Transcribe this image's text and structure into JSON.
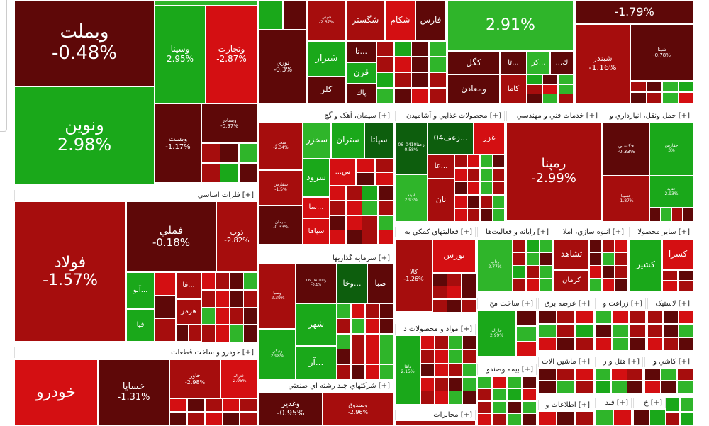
{
  "chart_data": {
    "type": "treemap",
    "colors": {
      "strong_up": "#1aa81a",
      "up": "#2fb52a",
      "dark_up": "#0d5e0d",
      "strong_down": "#d40f12",
      "down": "#a60d0d",
      "dark_down": "#5e0808",
      "header_bg": "#ffffff"
    },
    "groups": [
      "فلزات اساسي [+]",
      "خودرو و ساخت قطعات [+]",
      "سيمان، آهک و گچ [+]",
      "محصولات غذايي و آشاميدن [+]",
      "خدمات فني و مهندسي [+]",
      "حمل ونقل، انبارداري و [+]",
      "سرمايه گذاريها [+]",
      "فعاليتهاي كمكي به [+]",
      "رايانه و فعاليت‌ها [+]",
      "انبوه سازي، املا [+]",
      "ساير محصولا [+]",
      "شركتهاي چند رشته اي صنعتي [+]",
      "مواد و محصولات د [+]",
      "ساخت مح [+]",
      "عرضه برق [+]",
      "زراعت و [+]",
      "لاستيک [+]",
      "بيمه وصندو [+]",
      "ماشين الات [+]",
      "هتل و ر [+]",
      "كاشي و [+]",
      "اطلاعات و [+]",
      "قند [+]",
      "خ [+]",
      "مخابرات [+]"
    ],
    "stocks": [
      {
        "name": "وبملت",
        "change": "-0.48%"
      },
      {
        "name": "ونوين",
        "change": "2.98%"
      },
      {
        "name": "وسينا",
        "change": "2.95%"
      },
      {
        "name": "وتجارت",
        "change": "-2.87%"
      },
      {
        "name": "وبست",
        "change": "-1.17%"
      },
      {
        "name": "وبصادر",
        "change": "-0.97%"
      },
      {
        "name": "نوري",
        "change": "-0.3%"
      },
      {
        "name": "شگستر",
        "change": ""
      },
      {
        "name": "شكام",
        "change": ""
      },
      {
        "name": "فارس",
        "change": ""
      },
      {
        "name": "شيراز",
        "change": ""
      },
      {
        "name": "قرن",
        "change": ""
      },
      {
        "name": "كلر",
        "change": ""
      },
      {
        "name": "تا...",
        "change": ""
      },
      {
        "name": "پاك",
        "change": ""
      },
      {
        "name": "شپني",
        "change": "-2.67%"
      },
      {
        "name": "",
        "change": "2.91%"
      },
      {
        "name": "",
        "change": "-1.79%"
      },
      {
        "name": "كگل",
        "change": ""
      },
      {
        "name": "تا...",
        "change": ""
      },
      {
        "name": "كر...",
        "change": ""
      },
      {
        "name": "...ك",
        "change": ""
      },
      {
        "name": "ومعادن",
        "change": ""
      },
      {
        "name": "كاما",
        "change": ""
      },
      {
        "name": "شبندر",
        "change": "-1.16%"
      },
      {
        "name": "شپنا",
        "change": "-0.78%"
      },
      {
        "name": "فولاد",
        "change": "-1.57%"
      },
      {
        "name": "فملي",
        "change": "-0.18%"
      },
      {
        "name": "ذوب",
        "change": "-2.82%"
      },
      {
        "name": "فا...",
        "change": ""
      },
      {
        "name": "آلو...",
        "change": ""
      },
      {
        "name": "هرمز",
        "change": ""
      },
      {
        "name": "فيا",
        "change": ""
      },
      {
        "name": "خودرو",
        "change": ""
      },
      {
        "name": "خساپا",
        "change": "-1.31%"
      },
      {
        "name": "خاور",
        "change": "-2.98%"
      },
      {
        "name": "ختراك",
        "change": "-2.95%"
      },
      {
        "name": "سخزر",
        "change": ""
      },
      {
        "name": "ستران",
        "change": ""
      },
      {
        "name": "سپاتا",
        "change": ""
      },
      {
        "name": "سرود",
        "change": ""
      },
      {
        "name": "سا...",
        "change": ""
      },
      {
        "name": "سپاها",
        "change": ""
      },
      {
        "name": "...س",
        "change": ""
      },
      {
        "name": "سخزر",
        "change": "-2.34%"
      },
      {
        "name": "سفارس",
        "change": "-1.5%"
      },
      {
        "name": "سيمان",
        "change": "-0.33%"
      },
      {
        "name": "04زعف...",
        "change": ""
      },
      {
        "name": "غزر",
        "change": ""
      },
      {
        "name": "عا...",
        "change": ""
      },
      {
        "name": "نان",
        "change": ""
      },
      {
        "name": "زعفا0410_06",
        "change": "0.58%"
      },
      {
        "name": "ادينه",
        "change": "2.93%"
      },
      {
        "name": "رمپنا",
        "change": "-2.99%"
      },
      {
        "name": "حكشتي",
        "change": "-0.33%"
      },
      {
        "name": "حفارس",
        "change": "3%"
      },
      {
        "name": "حسينا",
        "change": "-1.87%"
      },
      {
        "name": "حتايد",
        "change": "2.93%"
      },
      {
        "name": "صبا",
        "change": ""
      },
      {
        "name": "وخا...",
        "change": ""
      },
      {
        "name": "شهر",
        "change": ""
      },
      {
        "name": "آر...",
        "change": ""
      },
      {
        "name": "واتا0410_06",
        "change": "-0.1%"
      },
      {
        "name": "وسبا",
        "change": "-2.39%"
      },
      {
        "name": "ونيكي",
        "change": "2.98%"
      },
      {
        "name": "بورس",
        "change": ""
      },
      {
        "name": "كالا",
        "change": "-1.26%"
      },
      {
        "name": "رتاپ",
        "change": "2.77%"
      },
      {
        "name": "ثشاهد",
        "change": ""
      },
      {
        "name": "كرمان",
        "change": ""
      },
      {
        "name": "كشير",
        "change": ""
      },
      {
        "name": "كسرا",
        "change": ""
      },
      {
        "name": "وغدير",
        "change": "-0.95%"
      },
      {
        "name": "وصندوق",
        "change": "-2.96%"
      },
      {
        "name": "فاراك",
        "change": "2.99%"
      },
      {
        "name": "دلقا",
        "change": "2.15%"
      }
    ]
  }
}
